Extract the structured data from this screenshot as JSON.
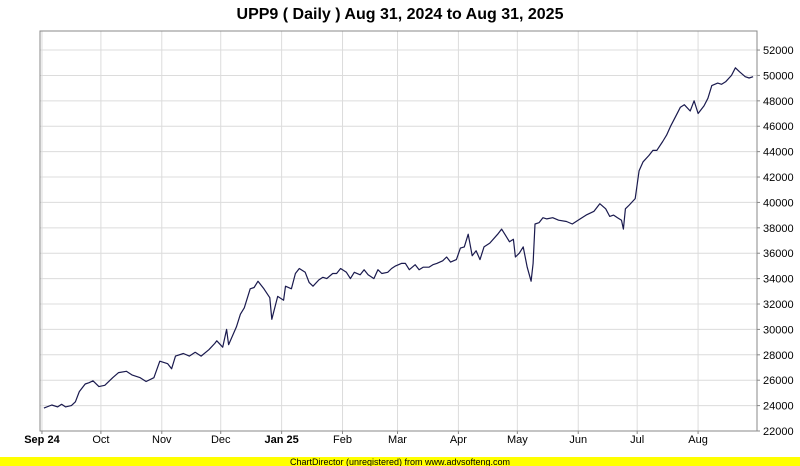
{
  "chart_data": {
    "type": "line",
    "title": "UPP9 ( Daily ) Aug 31, 2024 to Aug 31, 2025",
    "xlabel": "",
    "ylabel": "",
    "ylim": [
      22000,
      53500
    ],
    "yticks": [
      22000,
      24000,
      26000,
      28000,
      30000,
      32000,
      34000,
      36000,
      38000,
      40000,
      42000,
      44000,
      46000,
      48000,
      50000,
      52000
    ],
    "xlim": [
      "2024-08-31",
      "2025-08-31"
    ],
    "xticks": [
      {
        "date": "2024-09-01",
        "label": "Sep 24",
        "bold": true
      },
      {
        "date": "2024-10-01",
        "label": "Oct",
        "bold": false
      },
      {
        "date": "2024-11-01",
        "label": "Nov",
        "bold": false
      },
      {
        "date": "2024-12-01",
        "label": "Dec",
        "bold": false
      },
      {
        "date": "2025-01-01",
        "label": "Jan 25",
        "bold": true
      },
      {
        "date": "2025-02-01",
        "label": "Feb",
        "bold": false
      },
      {
        "date": "2025-03-01",
        "label": "Mar",
        "bold": false
      },
      {
        "date": "2025-04-01",
        "label": "Apr",
        "bold": false
      },
      {
        "date": "2025-05-01",
        "label": "May",
        "bold": false
      },
      {
        "date": "2025-06-01",
        "label": "Jun",
        "bold": false
      },
      {
        "date": "2025-07-01",
        "label": "Jul",
        "bold": false
      },
      {
        "date": "2025-08-01",
        "label": "Aug",
        "bold": false
      }
    ],
    "grid": true,
    "line_color": "#1a1a4e",
    "series": [
      {
        "points": [
          [
            "2024-09-02",
            23800
          ],
          [
            "2024-09-06",
            24050
          ],
          [
            "2024-09-09",
            23900
          ],
          [
            "2024-09-11",
            24100
          ],
          [
            "2024-09-13",
            23900
          ],
          [
            "2024-09-16",
            24000
          ],
          [
            "2024-09-18",
            24300
          ],
          [
            "2024-09-20",
            25100
          ],
          [
            "2024-09-23",
            25700
          ],
          [
            "2024-09-25",
            25800
          ],
          [
            "2024-09-27",
            25950
          ],
          [
            "2024-09-30",
            25500
          ],
          [
            "2024-10-03",
            25600
          ],
          [
            "2024-10-07",
            26200
          ],
          [
            "2024-10-10",
            26600
          ],
          [
            "2024-10-14",
            26700
          ],
          [
            "2024-10-17",
            26400
          ],
          [
            "2024-10-21",
            26200
          ],
          [
            "2024-10-24",
            25900
          ],
          [
            "2024-10-28",
            26200
          ],
          [
            "2024-10-31",
            27500
          ],
          [
            "2024-11-04",
            27300
          ],
          [
            "2024-11-06",
            26900
          ],
          [
            "2024-11-08",
            27900
          ],
          [
            "2024-11-12",
            28100
          ],
          [
            "2024-11-15",
            27900
          ],
          [
            "2024-11-18",
            28200
          ],
          [
            "2024-11-21",
            27900
          ],
          [
            "2024-11-25",
            28400
          ],
          [
            "2024-11-28",
            28900
          ],
          [
            "2024-11-29",
            29100
          ],
          [
            "2024-12-02",
            28600
          ],
          [
            "2024-12-04",
            30000
          ],
          [
            "2024-12-05",
            28800
          ],
          [
            "2024-12-09",
            30200
          ],
          [
            "2024-12-11",
            31200
          ],
          [
            "2024-12-13",
            31700
          ],
          [
            "2024-12-16",
            33200
          ],
          [
            "2024-12-18",
            33300
          ],
          [
            "2024-12-20",
            33800
          ],
          [
            "2024-12-23",
            33200
          ],
          [
            "2024-12-26",
            32500
          ],
          [
            "2024-12-27",
            30800
          ],
          [
            "2024-12-30",
            32600
          ],
          [
            "2025-01-02",
            32300
          ],
          [
            "2025-01-03",
            33400
          ],
          [
            "2025-01-06",
            33200
          ],
          [
            "2025-01-08",
            34400
          ],
          [
            "2025-01-10",
            34800
          ],
          [
            "2025-01-13",
            34500
          ],
          [
            "2025-01-15",
            33700
          ],
          [
            "2025-01-17",
            33400
          ],
          [
            "2025-01-20",
            33900
          ],
          [
            "2025-01-22",
            34100
          ],
          [
            "2025-01-24",
            34000
          ],
          [
            "2025-01-27",
            34400
          ],
          [
            "2025-01-29",
            34400
          ],
          [
            "2025-01-31",
            34800
          ],
          [
            "2025-02-03",
            34500
          ],
          [
            "2025-02-05",
            34000
          ],
          [
            "2025-02-07",
            34500
          ],
          [
            "2025-02-10",
            34300
          ],
          [
            "2025-02-12",
            34700
          ],
          [
            "2025-02-14",
            34300
          ],
          [
            "2025-02-17",
            34000
          ],
          [
            "2025-02-19",
            34700
          ],
          [
            "2025-02-21",
            34400
          ],
          [
            "2025-02-24",
            34500
          ],
          [
            "2025-02-26",
            34800
          ],
          [
            "2025-02-28",
            35000
          ],
          [
            "2025-03-03",
            35200
          ],
          [
            "2025-03-05",
            35200
          ],
          [
            "2025-03-07",
            34700
          ],
          [
            "2025-03-10",
            35100
          ],
          [
            "2025-03-12",
            34700
          ],
          [
            "2025-03-14",
            34900
          ],
          [
            "2025-03-17",
            34900
          ],
          [
            "2025-03-19",
            35100
          ],
          [
            "2025-03-21",
            35200
          ],
          [
            "2025-03-24",
            35400
          ],
          [
            "2025-03-26",
            35700
          ],
          [
            "2025-03-28",
            35300
          ],
          [
            "2025-03-31",
            35500
          ],
          [
            "2025-04-02",
            36400
          ],
          [
            "2025-04-04",
            36500
          ],
          [
            "2025-04-06",
            37500
          ],
          [
            "2025-04-08",
            35800
          ],
          [
            "2025-04-10",
            36200
          ],
          [
            "2025-04-12",
            35500
          ],
          [
            "2025-04-14",
            36500
          ],
          [
            "2025-04-17",
            36800
          ],
          [
            "2025-04-21",
            37500
          ],
          [
            "2025-04-23",
            37900
          ],
          [
            "2025-04-25",
            37400
          ],
          [
            "2025-04-27",
            36900
          ],
          [
            "2025-04-29",
            37100
          ],
          [
            "2025-04-30",
            35700
          ],
          [
            "2025-05-02",
            36000
          ],
          [
            "2025-05-04",
            36500
          ],
          [
            "2025-05-06",
            34900
          ],
          [
            "2025-05-08",
            33800
          ],
          [
            "2025-05-09",
            35200
          ],
          [
            "2025-05-10",
            38300
          ],
          [
            "2025-05-12",
            38400
          ],
          [
            "2025-05-14",
            38800
          ],
          [
            "2025-05-16",
            38700
          ],
          [
            "2025-05-19",
            38800
          ],
          [
            "2025-05-22",
            38600
          ],
          [
            "2025-05-26",
            38500
          ],
          [
            "2025-05-29",
            38300
          ],
          [
            "2025-06-02",
            38700
          ],
          [
            "2025-06-05",
            39000
          ],
          [
            "2025-06-09",
            39300
          ],
          [
            "2025-06-12",
            39900
          ],
          [
            "2025-06-15",
            39500
          ],
          [
            "2025-06-17",
            38900
          ],
          [
            "2025-06-19",
            39000
          ],
          [
            "2025-06-21",
            38800
          ],
          [
            "2025-06-23",
            38600
          ],
          [
            "2025-06-24",
            37900
          ],
          [
            "2025-06-25",
            39500
          ],
          [
            "2025-06-27",
            39800
          ],
          [
            "2025-06-30",
            40300
          ],
          [
            "2025-07-02",
            42500
          ],
          [
            "2025-07-04",
            43200
          ],
          [
            "2025-07-07",
            43700
          ],
          [
            "2025-07-09",
            44100
          ],
          [
            "2025-07-11",
            44100
          ],
          [
            "2025-07-14",
            44800
          ],
          [
            "2025-07-16",
            45300
          ],
          [
            "2025-07-18",
            46000
          ],
          [
            "2025-07-21",
            46900
          ],
          [
            "2025-07-23",
            47500
          ],
          [
            "2025-07-25",
            47700
          ],
          [
            "2025-07-28",
            47200
          ],
          [
            "2025-07-30",
            48000
          ],
          [
            "2025-08-01",
            47000
          ],
          [
            "2025-08-04",
            47600
          ],
          [
            "2025-08-06",
            48200
          ],
          [
            "2025-08-08",
            49200
          ],
          [
            "2025-08-11",
            49400
          ],
          [
            "2025-08-13",
            49300
          ],
          [
            "2025-08-15",
            49500
          ],
          [
            "2025-08-18",
            50000
          ],
          [
            "2025-08-20",
            50600
          ],
          [
            "2025-08-22",
            50300
          ],
          [
            "2025-08-25",
            49900
          ],
          [
            "2025-08-27",
            49800
          ],
          [
            "2025-08-29",
            49900
          ]
        ]
      }
    ]
  },
  "footer": {
    "text": "ChartDirector (unregistered) from www.advsofteng.com",
    "background": "#ffff00"
  }
}
